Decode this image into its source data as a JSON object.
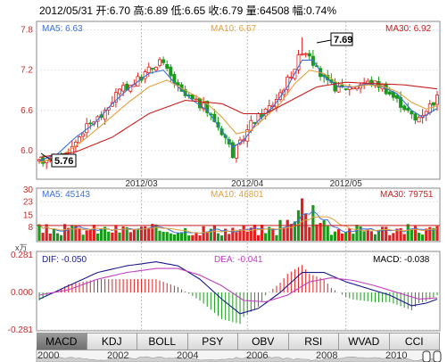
{
  "header": {
    "date": "2012/05/31",
    "open_label": "开:",
    "open": "6.70",
    "high_label": "高:",
    "high": "6.89",
    "low_label": "低:",
    "low": "6.65",
    "close_label": "收:",
    "close": "6.79",
    "vol_label": "量:",
    "vol": "64508",
    "chg_label": "幅:",
    "chg": "0.74%"
  },
  "price_panel": {
    "ma5_label": "MA5: 6.63",
    "ma10_label": "MA10: 6.67",
    "ma30_label": "MA30: 6.92",
    "max_callout": "7.69",
    "min_callout": "5.76",
    "colors": {
      "ma5": "#3a6fd8",
      "ma10": "#e0a040",
      "ma30": "#c81e1e",
      "up": "#e02020",
      "down": "#1a9a1a"
    }
  },
  "volume_panel": {
    "ma5_label": "MA5: 45143",
    "ma10_label": "MA10: 46801",
    "ma30_label": "MA30: 79751",
    "unit": "x万"
  },
  "macd_panel": {
    "dif_label": "DIF: -0.050",
    "dea_label": "DEA: -0.041",
    "macd_label": "MACD: -0.038"
  },
  "tabs": [
    "MACD",
    "KDJ",
    "BOLL",
    "PSY",
    "OBV",
    "RSI",
    "WVAD",
    "CCI"
  ],
  "active_tab": "MACD",
  "overview": {
    "years": [
      "2000",
      "2002",
      "2004",
      "2006",
      "2008",
      "2010"
    ]
  },
  "chart_data": [
    {
      "type": "candlestick",
      "ylim": [
        5.6,
        7.9
      ],
      "yticks": [
        6.0,
        6.6,
        7.2,
        7.8
      ],
      "ytick_labels": [
        "6.0",
        "6.6",
        "7.2",
        "7.8"
      ],
      "xtick_labels": [
        "2012/03",
        "2012/04",
        "2012/05"
      ],
      "xtick_positions": [
        28,
        57,
        84
      ],
      "n_days": 110,
      "price_path": [
        [
          0,
          5.82
        ],
        [
          3,
          5.92
        ],
        [
          6,
          5.86
        ],
        [
          9,
          6.05
        ],
        [
          12,
          6.3
        ],
        [
          15,
          6.45
        ],
        [
          18,
          6.55
        ],
        [
          21,
          6.85
        ],
        [
          24,
          6.95
        ],
        [
          27,
          7.05
        ],
        [
          30,
          7.2
        ],
        [
          33,
          7.35
        ],
        [
          36,
          7.1
        ],
        [
          39,
          6.85
        ],
        [
          42,
          6.75
        ],
        [
          45,
          6.65
        ],
        [
          48,
          6.45
        ],
        [
          51,
          6.2
        ],
        [
          53,
          5.95
        ],
        [
          55,
          6.1
        ],
        [
          58,
          6.4
        ],
        [
          61,
          6.55
        ],
        [
          64,
          6.7
        ],
        [
          67,
          6.95
        ],
        [
          70,
          7.25
        ],
        [
          72,
          7.5
        ],
        [
          74,
          7.45
        ],
        [
          76,
          7.2
        ],
        [
          79,
          7.0
        ],
        [
          82,
          6.92
        ],
        [
          85,
          6.95
        ],
        [
          88,
          7.0
        ],
        [
          91,
          7.02
        ],
        [
          94,
          6.96
        ],
        [
          97,
          6.8
        ],
        [
          100,
          6.65
        ],
        [
          103,
          6.45
        ],
        [
          106,
          6.62
        ],
        [
          109,
          6.79
        ]
      ],
      "extremes": {
        "max": 7.69,
        "min": 5.76
      },
      "ma_paths": {
        "ma5": [
          [
            0,
            5.85
          ],
          [
            5,
            5.95
          ],
          [
            10,
            6.2
          ],
          [
            15,
            6.4
          ],
          [
            20,
            6.7
          ],
          [
            25,
            6.95
          ],
          [
            30,
            7.15
          ],
          [
            34,
            7.2
          ],
          [
            38,
            6.95
          ],
          [
            42,
            6.75
          ],
          [
            46,
            6.6
          ],
          [
            50,
            6.3
          ],
          [
            53,
            6.05
          ],
          [
            56,
            6.15
          ],
          [
            60,
            6.45
          ],
          [
            64,
            6.65
          ],
          [
            68,
            6.95
          ],
          [
            72,
            7.35
          ],
          [
            75,
            7.35
          ],
          [
            78,
            7.1
          ],
          [
            82,
            6.95
          ],
          [
            86,
            6.95
          ],
          [
            90,
            7.0
          ],
          [
            94,
            6.95
          ],
          [
            98,
            6.85
          ],
          [
            102,
            6.6
          ],
          [
            105,
            6.5
          ],
          [
            109,
            6.63
          ]
        ],
        "ma10": [
          [
            0,
            5.82
          ],
          [
            6,
            5.92
          ],
          [
            12,
            6.15
          ],
          [
            18,
            6.42
          ],
          [
            24,
            6.7
          ],
          [
            30,
            6.95
          ],
          [
            35,
            7.05
          ],
          [
            40,
            6.9
          ],
          [
            45,
            6.75
          ],
          [
            50,
            6.5
          ],
          [
            54,
            6.25
          ],
          [
            58,
            6.3
          ],
          [
            62,
            6.5
          ],
          [
            66,
            6.7
          ],
          [
            70,
            7.0
          ],
          [
            74,
            7.2
          ],
          [
            78,
            7.15
          ],
          [
            82,
            7.0
          ],
          [
            86,
            6.95
          ],
          [
            90,
            6.98
          ],
          [
            94,
            6.96
          ],
          [
            98,
            6.88
          ],
          [
            102,
            6.72
          ],
          [
            106,
            6.62
          ],
          [
            109,
            6.67
          ]
        ],
        "ma30": [
          [
            0,
            5.9
          ],
          [
            10,
            5.98
          ],
          [
            20,
            6.2
          ],
          [
            30,
            6.55
          ],
          [
            40,
            6.75
          ],
          [
            50,
            6.7
          ],
          [
            56,
            6.55
          ],
          [
            62,
            6.55
          ],
          [
            68,
            6.72
          ],
          [
            76,
            6.95
          ],
          [
            84,
            7.02
          ],
          [
            92,
            7.0
          ],
          [
            100,
            6.98
          ],
          [
            109,
            6.92
          ]
        ]
      }
    },
    {
      "type": "bar",
      "name": "volume",
      "ylim": [
        0,
        30
      ],
      "yticks": [
        8,
        15,
        23,
        30
      ],
      "ytick_labels": [
        "8",
        "15",
        "23",
        "30"
      ],
      "highlights": [
        [
          72,
          25
        ],
        [
          75,
          21
        ],
        [
          73,
          16
        ],
        [
          71,
          18
        ]
      ]
    },
    {
      "type": "bar+line",
      "name": "MACD",
      "ylim": [
        -0.281,
        0.281
      ],
      "yticks": [
        -0.281,
        0,
        0.281
      ],
      "ytick_labels": [
        "-0.281",
        "0.000",
        "0.281"
      ],
      "dif": [
        [
          0,
          -0.05
        ],
        [
          8,
          0.05
        ],
        [
          16,
          0.15
        ],
        [
          24,
          0.2
        ],
        [
          32,
          0.23
        ],
        [
          38,
          0.2
        ],
        [
          44,
          0.1
        ],
        [
          50,
          -0.05
        ],
        [
          55,
          -0.16
        ],
        [
          60,
          -0.12
        ],
        [
          66,
          0.0
        ],
        [
          72,
          0.15
        ],
        [
          78,
          0.15
        ],
        [
          84,
          0.08
        ],
        [
          90,
          0.03
        ],
        [
          96,
          -0.02
        ],
        [
          102,
          -0.1
        ],
        [
          106,
          -0.08
        ],
        [
          109,
          -0.05
        ]
      ],
      "dea": [
        [
          0,
          -0.02
        ],
        [
          8,
          0.02
        ],
        [
          16,
          0.1
        ],
        [
          24,
          0.15
        ],
        [
          32,
          0.18
        ],
        [
          38,
          0.18
        ],
        [
          44,
          0.13
        ],
        [
          50,
          0.05
        ],
        [
          56,
          -0.06
        ],
        [
          62,
          -0.07
        ],
        [
          68,
          -0.02
        ],
        [
          74,
          0.08
        ],
        [
          80,
          0.11
        ],
        [
          86,
          0.09
        ],
        [
          92,
          0.05
        ],
        [
          98,
          0.0
        ],
        [
          104,
          -0.05
        ],
        [
          109,
          -0.04
        ]
      ]
    }
  ]
}
